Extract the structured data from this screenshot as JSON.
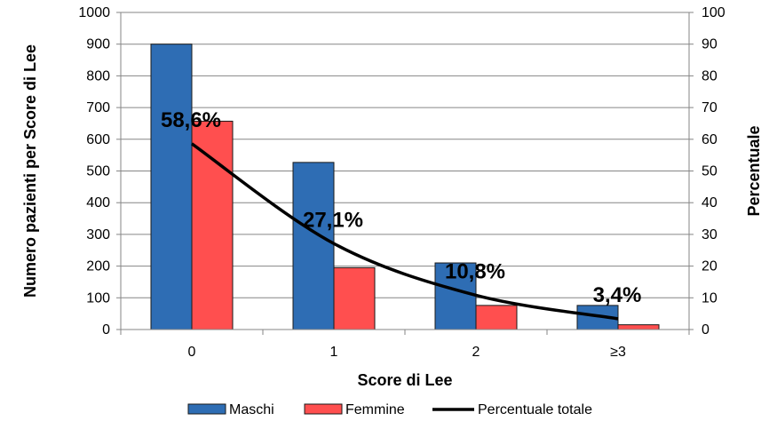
{
  "chart_data": {
    "type": "bar",
    "title": "",
    "categories": [
      "0",
      "1",
      "2",
      "≥3"
    ],
    "series": [
      {
        "name": "Maschi",
        "type": "bar",
        "axis": "left",
        "color": "#2E6DB4",
        "values": [
          900,
          527,
          210,
          76
        ]
      },
      {
        "name": "Femmine",
        "type": "bar",
        "axis": "left",
        "color": "#FF4F4F",
        "values": [
          657,
          195,
          76,
          15
        ]
      },
      {
        "name": "Percentuale totale",
        "type": "line",
        "axis": "right",
        "color": "#000000",
        "values": [
          58.6,
          27.1,
          10.8,
          3.4
        ]
      }
    ],
    "data_labels": [
      "58,6%",
      "27,1%",
      "10,8%",
      "3,4%"
    ],
    "xlabel": "Score di Lee",
    "ylabel": "Numero pazienti per Score di Lee",
    "y2label": "Percentuale",
    "ylim": [
      0,
      1000
    ],
    "y2lim": [
      0,
      100
    ],
    "yticks": [
      "0",
      "100",
      "200",
      "300",
      "400",
      "500",
      "600",
      "700",
      "800",
      "900",
      "1000"
    ],
    "y2ticks": [
      "0",
      "10",
      "20",
      "30",
      "40",
      "50",
      "60",
      "70",
      "80",
      "90",
      "100"
    ],
    "grid": true,
    "legend_position": "bottom"
  }
}
